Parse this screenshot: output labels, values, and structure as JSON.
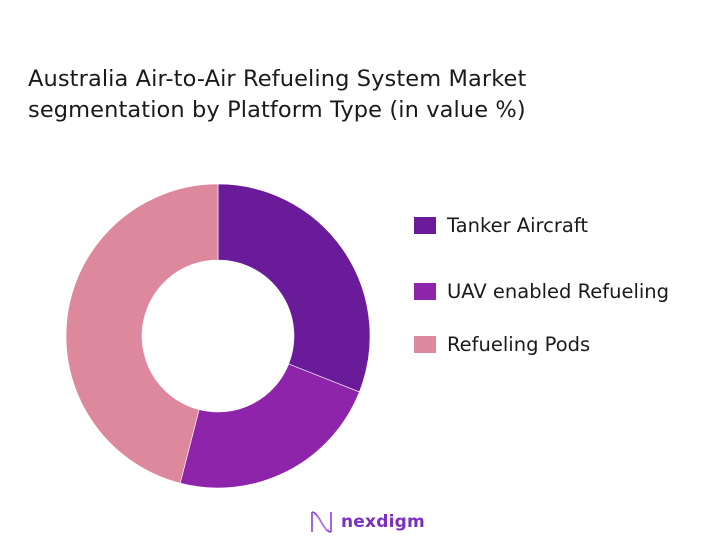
{
  "title": {
    "line1": "Australia Air-to-Air Refueling System Market",
    "line2": "segmentation by Platform Type (in value %)"
  },
  "legend": {
    "items": [
      {
        "label": "Tanker Aircraft",
        "color": "#6a1b9a"
      },
      {
        "label": "UAV enabled Refueling",
        "color": "#8e24aa"
      },
      {
        "label": "Refueling Pods",
        "color": "#de889e"
      }
    ]
  },
  "logo": {
    "text": "nexdigm",
    "icon": "nexdigm-wave-logo-icon"
  },
  "chart_data": {
    "type": "pie",
    "variant": "donut",
    "title": "Australia Air-to-Air Refueling System Market segmentation by Platform Type (in value %)",
    "categories": [
      "Tanker Aircraft",
      "UAV enabled Refueling",
      "Refueling Pods"
    ],
    "values": [
      31,
      23,
      46
    ],
    "colors": [
      "#6a1b9a",
      "#8e24aa",
      "#de889e"
    ],
    "start_angle": "12 o'clock, clockwise",
    "data_labels": false,
    "legend_position": "right"
  }
}
